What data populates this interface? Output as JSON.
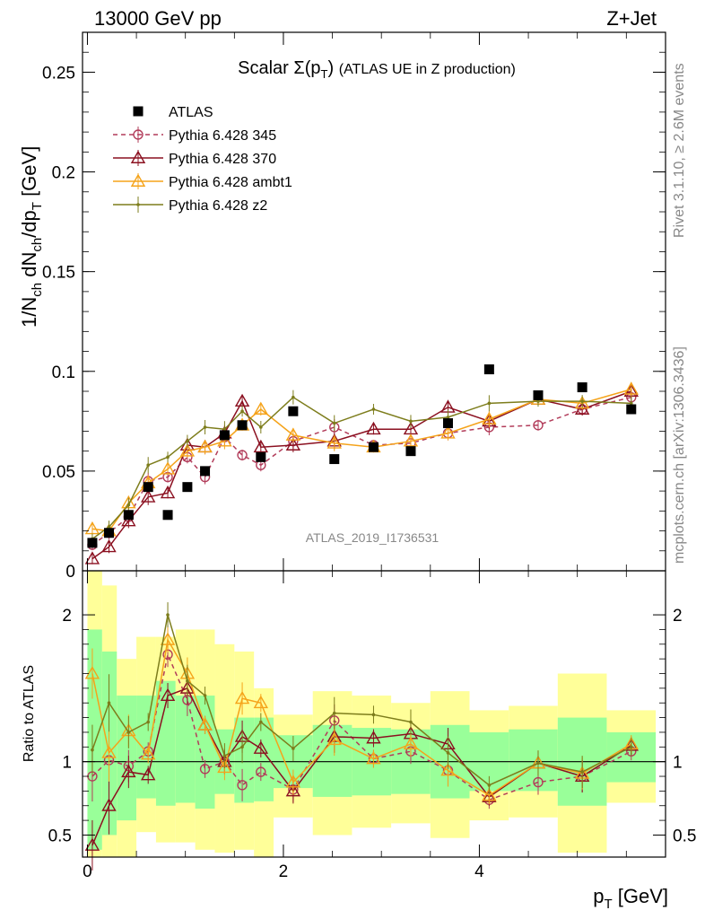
{
  "header": {
    "energy": "13000 GeV pp",
    "process": "Z+Jet"
  },
  "side_text": {
    "rivet": "Rivet 3.1.10, ≥ 2.6M events",
    "source": "mcplots.cern.ch [arXiv:1306.3436]"
  },
  "chart_data": [
    {
      "type": "line",
      "title_main": "Scalar Σ(p",
      "title_sub": "T",
      "title_close": ")",
      "title_rest": "(ATLAS UE in Z production)",
      "watermark": "ATLAS_2019_I1736531",
      "ylabel": "1/N_ch dN_ch/dp_T [GeV]",
      "xlim": [
        -0.05,
        5.9
      ],
      "ylim": [
        0,
        0.27
      ],
      "yticks": [
        {
          "v": 0,
          "label": "0"
        },
        {
          "v": 0.05,
          "label": "0.05"
        },
        {
          "v": 0.1,
          "label": "0.1"
        },
        {
          "v": 0.15,
          "label": "0.15"
        },
        {
          "v": 0.2,
          "label": "0.2"
        },
        {
          "v": 0.25,
          "label": "0.25"
        }
      ],
      "x": [
        0.05,
        0.22,
        0.42,
        0.62,
        0.82,
        1.02,
        1.2,
        1.4,
        1.58,
        1.77,
        2.1,
        2.52,
        2.92,
        3.3,
        3.68,
        4.1,
        4.6,
        5.05,
        5.55
      ],
      "data": {
        "name": "ATLAS",
        "values": [
          0.014,
          0.019,
          0.028,
          0.042,
          0.028,
          0.042,
          0.05,
          0.068,
          0.073,
          0.057,
          0.08,
          0.056,
          0.062,
          0.06,
          0.074,
          0.101,
          0.088,
          0.092,
          0.081
        ]
      },
      "series": [
        {
          "name": "Pythia 6.428 345",
          "color": "#b23c5a",
          "dashed": true,
          "marker": "circle",
          "values": [
            0.013,
            0.019,
            0.027,
            0.045,
            0.047,
            0.057,
            0.047,
            0.067,
            0.058,
            0.053,
            0.065,
            0.072,
            0.063,
            0.064,
            0.069,
            0.072,
            0.073,
            0.081,
            0.087
          ]
        },
        {
          "name": "Pythia 6.428 370",
          "color": "#8b1020",
          "dashed": false,
          "marker": "triangle",
          "values": [
            0.006,
            0.012,
            0.025,
            0.037,
            0.039,
            0.063,
            0.062,
            0.069,
            0.085,
            0.062,
            0.063,
            0.065,
            0.071,
            0.071,
            0.082,
            0.075,
            0.086,
            0.081,
            0.09
          ]
        },
        {
          "name": "Pythia 6.428 ambt1",
          "color": "#f5a31a",
          "dashed": false,
          "marker": "triangle",
          "values": [
            0.021,
            0.02,
            0.034,
            0.044,
            0.051,
            0.06,
            0.062,
            0.065,
            0.073,
            0.081,
            0.068,
            0.064,
            0.062,
            0.065,
            0.069,
            0.076,
            0.086,
            0.084,
            0.091
          ]
        },
        {
          "name": "Pythia 6.428 z2",
          "color": "#7d7d1c",
          "dashed": false,
          "marker": "dot",
          "values": [
            0.016,
            0.022,
            0.033,
            0.053,
            0.057,
            0.065,
            0.072,
            0.071,
            0.08,
            0.072,
            0.087,
            0.074,
            0.081,
            0.075,
            0.077,
            0.084,
            0.085,
            0.085,
            0.084
          ]
        }
      ]
    },
    {
      "type": "line",
      "ylabel": "Ratio to ATLAS",
      "xlabel_main": "p",
      "xlabel_sub": "T",
      "xlabel_unit": "[GeV]",
      "xlim": [
        -0.05,
        5.9
      ],
      "ylim": [
        0.35,
        2.3
      ],
      "reference": 1,
      "xticks": [
        {
          "v": 0,
          "label": "0"
        },
        {
          "v": 2,
          "label": "2"
        },
        {
          "v": 4,
          "label": "4"
        }
      ],
      "yticks": [
        {
          "v": 0.5,
          "label": "0.5"
        },
        {
          "v": 1,
          "label": "1"
        },
        {
          "v": 2,
          "label": "2"
        }
      ],
      "bins": [
        {
          "x0": 0.0,
          "x1": 0.15,
          "green": [
            0.4,
            1.9
          ],
          "yellow": [
            0.3,
            2.3
          ]
        },
        {
          "x0": 0.15,
          "x1": 0.3,
          "green": [
            0.5,
            1.75
          ],
          "yellow": [
            0.3,
            2.2
          ]
        },
        {
          "x0": 0.3,
          "x1": 0.5,
          "green": [
            0.6,
            1.45
          ],
          "yellow": [
            0.35,
            1.7
          ]
        },
        {
          "x0": 0.5,
          "x1": 0.7,
          "green": [
            0.75,
            1.45
          ],
          "yellow": [
            0.52,
            1.85
          ]
        },
        {
          "x0": 0.7,
          "x1": 0.9,
          "green": [
            0.7,
            1.55
          ],
          "yellow": [
            0.45,
            1.85
          ]
        },
        {
          "x0": 0.9,
          "x1": 1.1,
          "green": [
            0.72,
            1.45
          ],
          "yellow": [
            0.45,
            1.9
          ]
        },
        {
          "x0": 1.1,
          "x1": 1.3,
          "green": [
            0.68,
            1.45
          ],
          "yellow": [
            0.4,
            1.9
          ]
        },
        {
          "x0": 1.3,
          "x1": 1.5,
          "green": [
            0.78,
            1.22
          ],
          "yellow": [
            0.38,
            1.8
          ]
        },
        {
          "x0": 1.5,
          "x1": 1.7,
          "green": [
            0.72,
            1.3
          ],
          "yellow": [
            0.4,
            1.75
          ]
        },
        {
          "x0": 1.7,
          "x1": 1.9,
          "green": [
            0.73,
            1.3
          ],
          "yellow": [
            0.35,
            1.5
          ]
        },
        {
          "x0": 1.9,
          "x1": 2.3,
          "green": [
            0.82,
            1.18
          ],
          "yellow": [
            0.62,
            1.32
          ]
        },
        {
          "x0": 2.3,
          "x1": 2.7,
          "green": [
            0.76,
            1.25
          ],
          "yellow": [
            0.5,
            1.48
          ]
        },
        {
          "x0": 2.7,
          "x1": 3.1,
          "green": [
            0.77,
            1.23
          ],
          "yellow": [
            0.55,
            1.45
          ]
        },
        {
          "x0": 3.1,
          "x1": 3.5,
          "green": [
            0.78,
            1.22
          ],
          "yellow": [
            0.58,
            1.4
          ]
        },
        {
          "x0": 3.5,
          "x1": 3.9,
          "green": [
            0.75,
            1.25
          ],
          "yellow": [
            0.48,
            1.48
          ]
        },
        {
          "x0": 3.9,
          "x1": 4.3,
          "green": [
            0.8,
            1.2
          ],
          "yellow": [
            0.6,
            1.35
          ]
        },
        {
          "x0": 4.3,
          "x1": 4.8,
          "green": [
            0.8,
            1.22
          ],
          "yellow": [
            0.62,
            1.38
          ]
        },
        {
          "x0": 4.8,
          "x1": 5.3,
          "green": [
            0.7,
            1.3
          ],
          "yellow": [
            0.38,
            1.6
          ]
        },
        {
          "x0": 5.3,
          "x1": 5.8,
          "green": [
            0.86,
            1.2
          ],
          "yellow": [
            0.72,
            1.35
          ]
        }
      ],
      "series": [
        {
          "name": "Pythia 6.428 345",
          "values": [
            0.9,
            1.01,
            0.97,
            1.07,
            1.73,
            1.42,
            0.95,
            1.0,
            0.84,
            0.93,
            0.81,
            1.28,
            1.02,
            1.07,
            0.94,
            0.74,
            0.86,
            0.9,
            1.07
          ]
        },
        {
          "name": "Pythia 6.428 370",
          "values": [
            0.43,
            0.7,
            0.93,
            0.91,
            1.45,
            1.5,
            1.25,
            1.0,
            1.17,
            1.09,
            0.8,
            1.17,
            1.16,
            1.19,
            1.12,
            0.76,
            0.99,
            0.9,
            1.11
          ]
        },
        {
          "name": "Pythia 6.428 ambt1",
          "values": [
            1.6,
            1.06,
            1.21,
            1.05,
            1.83,
            1.6,
            1.25,
            0.96,
            1.43,
            1.4,
            0.86,
            1.15,
            1.02,
            1.12,
            0.94,
            0.77,
            0.99,
            0.92,
            1.12
          ]
        },
        {
          "name": "Pythia 6.428 z2",
          "values": [
            1.08,
            1.4,
            1.2,
            1.27,
            2.0,
            1.55,
            1.45,
            1.04,
            1.1,
            1.27,
            1.09,
            1.33,
            1.32,
            1.27,
            1.06,
            0.84,
            0.99,
            0.93,
            1.1
          ]
        }
      ]
    }
  ]
}
